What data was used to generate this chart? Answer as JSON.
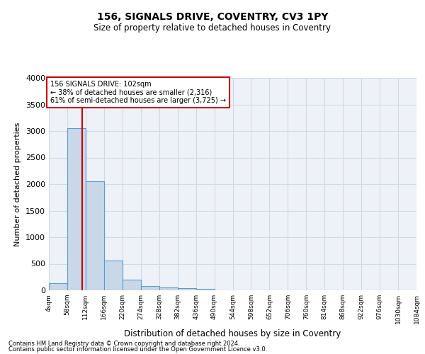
{
  "title": "156, SIGNALS DRIVE, COVENTRY, CV3 1PY",
  "subtitle": "Size of property relative to detached houses in Coventry",
  "xlabel": "Distribution of detached houses by size in Coventry",
  "ylabel": "Number of detached properties",
  "bar_edges": [
    4,
    58,
    112,
    166,
    220,
    274,
    328,
    382,
    436,
    490,
    544,
    598,
    652,
    706,
    760,
    814,
    868,
    922,
    976,
    1030,
    1084
  ],
  "bar_heights": [
    130,
    3060,
    2060,
    560,
    200,
    75,
    55,
    40,
    30,
    0,
    0,
    0,
    0,
    0,
    0,
    0,
    0,
    0,
    0,
    0
  ],
  "bar_color": "#c8d8e8",
  "bar_edge_color": "#5b9bd5",
  "property_size": 102,
  "red_line_color": "#cc0000",
  "annotation_line1": "156 SIGNALS DRIVE: 102sqm",
  "annotation_line2": "← 38% of detached houses are smaller (2,316)",
  "annotation_line3": "61% of semi-detached houses are larger (3,725) →",
  "annotation_box_color": "#cc0000",
  "ylim": [
    0,
    4000
  ],
  "yticks": [
    0,
    500,
    1000,
    1500,
    2000,
    2500,
    3000,
    3500,
    4000
  ],
  "grid_color": "#d0d8e8",
  "background_color": "#eef2f8",
  "footer_line1": "Contains HM Land Registry data © Crown copyright and database right 2024.",
  "footer_line2": "Contains public sector information licensed under the Open Government Licence v3.0."
}
